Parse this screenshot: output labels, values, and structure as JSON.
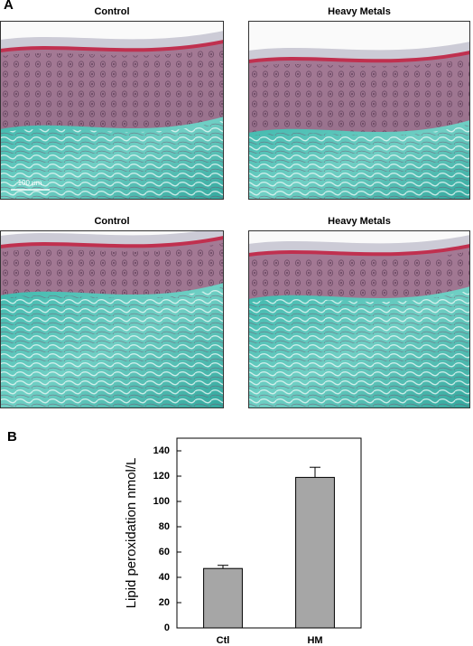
{
  "figure": {
    "panel_a": {
      "label": "A",
      "images": [
        {
          "title": "Control"
        },
        {
          "title": "Heavy Metals"
        },
        {
          "title": "Control"
        },
        {
          "title": "Heavy Metals"
        }
      ],
      "scale_bar": "100 μm"
    },
    "panel_b": {
      "label": "B"
    }
  },
  "chart_data": {
    "type": "bar",
    "y_label": "Lipid peroxidation nmol/L",
    "categories": [
      "Ctl",
      "HM"
    ],
    "values": [
      47,
      119
    ],
    "errors": [
      2.5,
      8
    ],
    "color": "#a6a6a6",
    "ylim": [
      0,
      150
    ],
    "yticks": [
      0,
      20,
      40,
      60,
      80,
      100,
      120,
      140
    ]
  }
}
